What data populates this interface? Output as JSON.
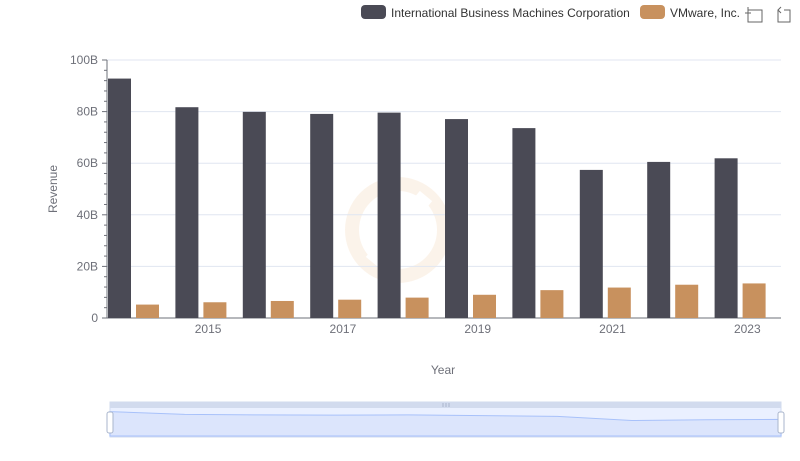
{
  "chart_data": {
    "type": "bar",
    "title": "",
    "xlabel": "Year",
    "ylabel": "Revenue",
    "categories": [
      "2014",
      "2015",
      "2016",
      "2017",
      "2018",
      "2019",
      "2020",
      "2021",
      "2022",
      "2023"
    ],
    "x_tick_labels": [
      "2015",
      "2017",
      "2019",
      "2021",
      "2023"
    ],
    "y_tick_labels": [
      "0",
      "20B",
      "40B",
      "60B",
      "80B",
      "100B"
    ],
    "ylim": [
      0,
      100
    ],
    "y_unit": "B",
    "legend_position": "top-right",
    "series": [
      {
        "name": "International Business Machines Corporation",
        "color": "#4a4a55",
        "values": [
          92.8,
          81.7,
          79.9,
          79.1,
          79.6,
          77.1,
          73.6,
          57.4,
          60.5,
          61.9
        ]
      },
      {
        "name": "VMware, Inc.",
        "color": "#c8915e",
        "values": [
          5.2,
          6.1,
          6.6,
          7.1,
          7.9,
          9.0,
          10.8,
          11.8,
          12.9,
          13.4
        ]
      }
    ]
  },
  "toolbox": {
    "zoom_icon": "zoom-icon",
    "reset_icon": "restore-icon"
  },
  "datazoom": {
    "start_percent": 0,
    "end_percent": 100
  }
}
